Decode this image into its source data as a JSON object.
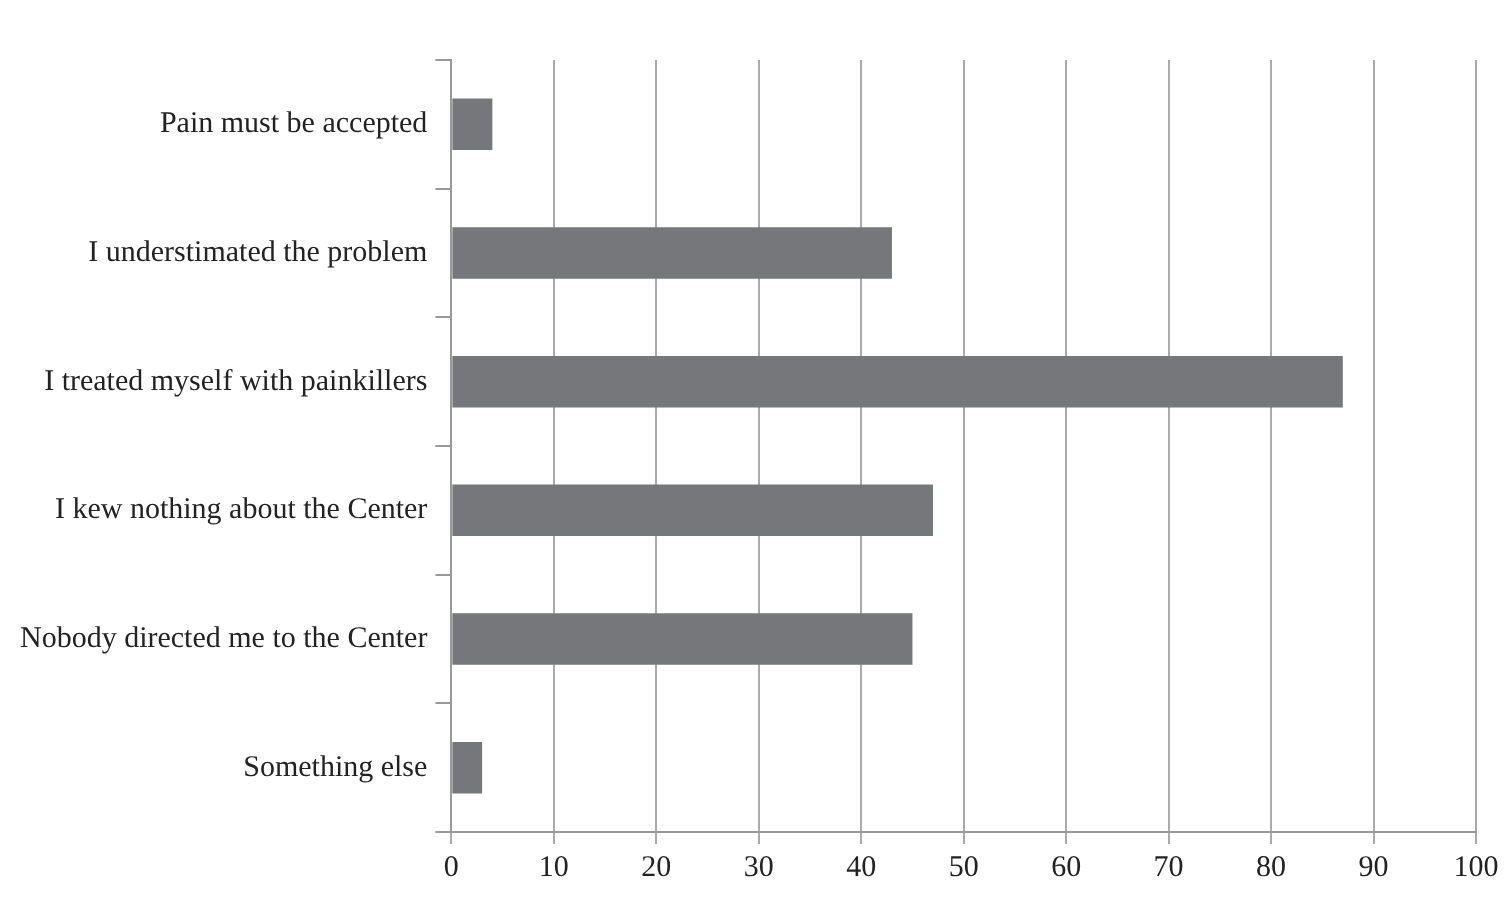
{
  "chart_data": {
    "type": "bar",
    "orientation": "horizontal",
    "categories": [
      "Pain must be accepted",
      "I understimated the problem",
      "I treated myself with painkillers",
      "I kew nothing about the Center",
      "Nobody directed me to the Center",
      "Something else"
    ],
    "values": [
      4,
      43,
      87,
      47,
      45,
      3
    ],
    "color": "#76777b",
    "xlim": [
      0,
      100
    ],
    "xticks": [
      0,
      10,
      20,
      30,
      40,
      50,
      60,
      70,
      80,
      90,
      100
    ],
    "grid": "x",
    "legend": false
  }
}
